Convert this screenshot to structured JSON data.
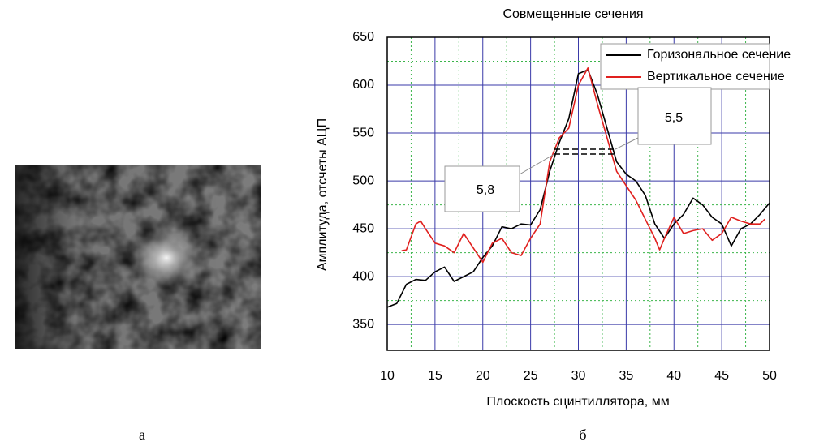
{
  "panel_labels": [
    "а",
    "б"
  ],
  "chart_data": {
    "type": "line",
    "title": "Совмещенные сечения",
    "x_label": "Плоскость сцинтиллятора, мм",
    "y_label": "Амплитуда, отсчеты АЦП",
    "xlim": [
      10,
      50
    ],
    "xticks": [
      10,
      15,
      20,
      25,
      30,
      35,
      40,
      45,
      50
    ],
    "ylim": [
      323,
      650
    ],
    "yticks": [
      350,
      400,
      450,
      500,
      550,
      600,
      650
    ],
    "grid": true,
    "legend": "upper right",
    "annotations": [
      "5,8",
      "5,5"
    ],
    "series": [
      {
        "name": "Горизональное сечение",
        "color": "#000000",
        "x": [
          10,
          11,
          12,
          13,
          14,
          15,
          16,
          17,
          18,
          19,
          20,
          21,
          22,
          23,
          24,
          25,
          26,
          27,
          28,
          29,
          30,
          31,
          32,
          33,
          34,
          35,
          36,
          37,
          38,
          39,
          40,
          41,
          42,
          43,
          44,
          45,
          46,
          47,
          48,
          49,
          50
        ],
        "values": [
          368,
          372,
          392,
          397,
          396,
          405,
          410,
          395,
          400,
          405,
          420,
          432,
          452,
          450,
          455,
          454,
          470,
          510,
          540,
          565,
          612,
          616,
          590,
          555,
          520,
          507,
          500,
          485,
          455,
          440,
          455,
          465,
          482,
          475,
          462,
          455,
          432,
          450,
          455,
          465,
          477
        ]
      },
      {
        "name": "Вертикальное сечение",
        "color": "#e0201e",
        "x": [
          11.5,
          12,
          13,
          13.5,
          14,
          15,
          16,
          17,
          18,
          19,
          20,
          21,
          22,
          23,
          24,
          25,
          26,
          27,
          28,
          29,
          30,
          31,
          32,
          33,
          34,
          35,
          36,
          37,
          38,
          38.5,
          39,
          40,
          41,
          42,
          43,
          44,
          45,
          46,
          47,
          48,
          49,
          49.5
        ],
        "values": [
          427,
          428,
          455,
          458,
          450,
          435,
          432,
          425,
          445,
          430,
          415,
          435,
          440,
          425,
          422,
          440,
          455,
          520,
          545,
          555,
          600,
          618,
          580,
          545,
          510,
          495,
          480,
          460,
          440,
          428,
          440,
          462,
          445,
          448,
          450,
          438,
          445,
          462,
          458,
          455,
          455,
          460
        ]
      }
    ]
  }
}
